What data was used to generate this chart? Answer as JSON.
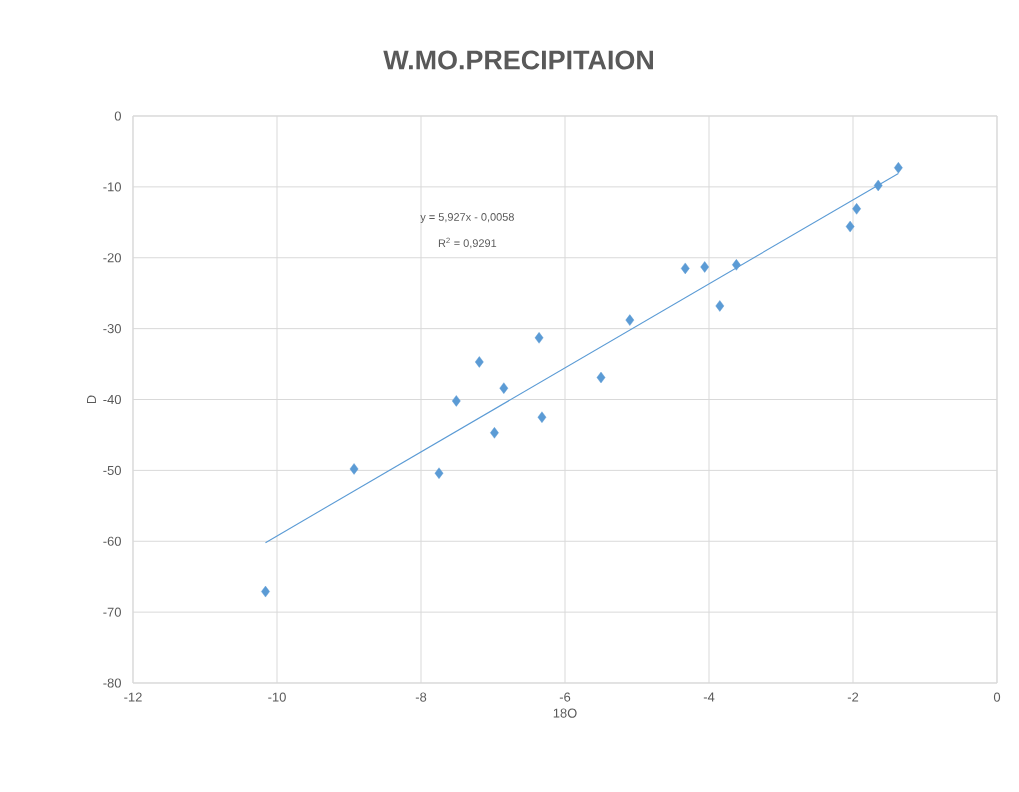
{
  "chart_data": {
    "type": "scatter",
    "title": "W.MO.PRECIPITAION",
    "xlabel": "18O",
    "ylabel": "D",
    "annotations": [
      "y = 5,927x - 0,0058",
      "R$^{2}$ = 0,9291"
    ],
    "series": [
      {
        "color": "#5b9bd5",
        "marker": "diamond",
        "x": [
          -10.16,
          -8.93,
          -7.75,
          -7.51,
          -7.19,
          -6.98,
          -6.85,
          -6.36,
          -6.32,
          -5.5,
          -5.1,
          -4.33,
          -4.06,
          -3.85,
          -3.62,
          -2.04,
          -1.95,
          -1.65,
          -1.37
        ],
        "values": [
          -67.1,
          -49.8,
          -50.4,
          -40.2,
          -34.7,
          -44.7,
          -38.4,
          -31.3,
          -42.5,
          -36.9,
          -28.8,
          -21.5,
          -21.3,
          -26.8,
          -21.0,
          -15.6,
          -13.1,
          -9.8,
          -7.3
        ]
      },
      {
        "type": "line",
        "color": "#5b9bd5",
        "marker": "none",
        "x": [
          -10.16,
          -1.37
        ],
        "values": [
          -60.2,
          -8.1
        ]
      }
    ],
    "xlim": [
      -12,
      0
    ],
    "ylim": [
      -80,
      0
    ],
    "xticks": [
      -12,
      -10,
      -8,
      -6,
      -4,
      -2,
      0
    ],
    "yticks": [
      -80,
      -70,
      -60,
      -50,
      -40,
      -30,
      -20,
      -10,
      0
    ],
    "grid": true
  }
}
